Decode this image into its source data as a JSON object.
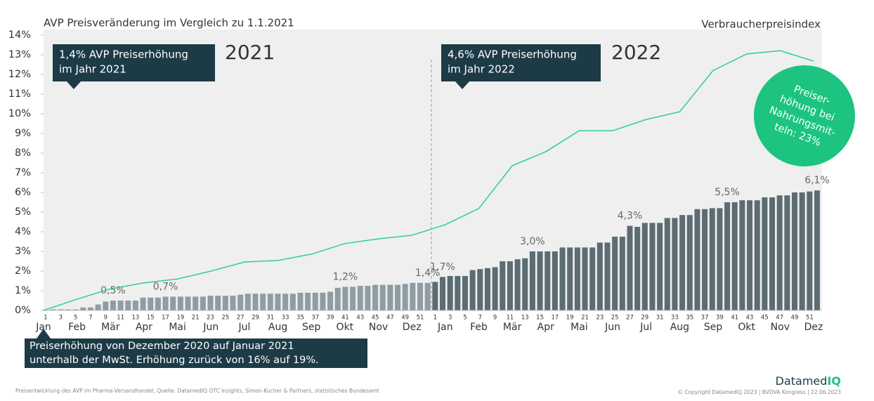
{
  "chart_data": {
    "type": "bar",
    "title": "AVP Preisveränderung im Vergleich zu 1.1.2021",
    "categories": [
      "1",
      null,
      "3",
      null,
      "5",
      null,
      "7",
      null,
      "9",
      null,
      "11",
      null,
      "13",
      null,
      "15",
      null,
      "17",
      null,
      "19",
      null,
      "21",
      null,
      "23",
      null,
      "25",
      null,
      "27",
      null,
      "29",
      null,
      "31",
      null,
      "33",
      null,
      "35",
      null,
      "37",
      null,
      "39",
      null,
      "41",
      null,
      "43",
      null,
      "45",
      null,
      "47",
      null,
      "49",
      null,
      "51",
      null,
      "1",
      null,
      "3",
      null,
      "5",
      null,
      "7",
      null,
      "9",
      null,
      "11",
      null,
      "13",
      null,
      "15",
      null,
      "17",
      null,
      "19",
      null,
      "21",
      null,
      "23",
      null,
      "25",
      null,
      "27",
      null,
      "29",
      null,
      "31",
      null,
      "33",
      null,
      "35",
      null,
      "37",
      null,
      "39",
      null,
      "41",
      null,
      "43",
      null,
      "45",
      null,
      "47",
      null,
      "49",
      null,
      "51",
      null
    ],
    "series": [
      {
        "name": "2021",
        "color": "#8f9da3",
        "values": [
          0,
          0.05,
          0.05,
          0.05,
          0.05,
          0.15,
          0.15,
          0.3,
          0.45,
          0.5,
          0.5,
          0.5,
          0.5,
          0.65,
          0.65,
          0.65,
          0.7,
          0.7,
          0.7,
          0.7,
          0.7,
          0.7,
          0.75,
          0.75,
          0.75,
          0.75,
          0.8,
          0.85,
          0.85,
          0.85,
          0.85,
          0.85,
          0.85,
          0.85,
          0.9,
          0.9,
          0.9,
          0.9,
          0.95,
          1.15,
          1.2,
          1.2,
          1.25,
          1.25,
          1.3,
          1.3,
          1.3,
          1.3,
          1.35,
          1.4,
          1.4,
          1.4,
          null,
          null,
          null,
          null,
          null,
          null,
          null,
          null,
          null,
          null,
          null,
          null,
          null,
          null,
          null,
          null,
          null,
          null,
          null,
          null,
          null,
          null,
          null,
          null,
          null,
          null,
          null,
          null,
          null,
          null,
          null,
          null,
          null,
          null,
          null,
          null,
          null,
          null,
          null,
          null,
          null,
          null,
          null,
          null,
          null,
          null,
          null,
          null,
          null,
          null,
          null,
          null
        ],
        "value_labels": [
          null,
          null,
          null,
          null,
          null,
          null,
          null,
          null,
          null,
          "0,5%",
          null,
          null,
          null,
          null,
          null,
          null,
          "0,7%",
          null,
          null,
          null,
          null,
          null,
          null,
          null,
          null,
          null,
          null,
          null,
          null,
          null,
          null,
          null,
          null,
          null,
          null,
          null,
          null,
          null,
          null,
          null,
          "1,2%",
          null,
          null,
          null,
          null,
          null,
          null,
          null,
          null,
          null,
          null,
          "1,4%",
          null,
          null,
          null,
          null,
          null,
          null,
          null,
          null,
          null,
          null,
          null,
          null,
          null,
          null,
          null,
          null,
          null,
          null,
          null,
          null,
          null,
          null,
          null,
          null,
          null,
          null,
          null,
          null,
          null,
          null,
          null,
          null,
          null,
          null,
          null,
          null,
          null,
          null,
          null,
          null,
          null,
          null,
          null,
          null,
          null,
          null,
          null,
          null,
          null,
          null,
          null,
          null
        ]
      },
      {
        "name": "2022",
        "color": "#5b6c73",
        "values": [
          null,
          null,
          null,
          null,
          null,
          null,
          null,
          null,
          null,
          null,
          null,
          null,
          null,
          null,
          null,
          null,
          null,
          null,
          null,
          null,
          null,
          null,
          null,
          null,
          null,
          null,
          null,
          null,
          null,
          null,
          null,
          null,
          null,
          null,
          null,
          null,
          null,
          null,
          null,
          null,
          null,
          null,
          null,
          null,
          null,
          null,
          null,
          null,
          null,
          null,
          null,
          null,
          1.45,
          1.7,
          1.75,
          1.75,
          1.75,
          2.05,
          2.1,
          2.15,
          2.2,
          2.5,
          2.5,
          2.6,
          2.65,
          3.0,
          3.0,
          3.0,
          3.0,
          3.2,
          3.2,
          3.2,
          3.2,
          3.2,
          3.45,
          3.45,
          3.75,
          3.75,
          4.3,
          4.25,
          4.45,
          4.45,
          4.45,
          4.7,
          4.7,
          4.85,
          4.85,
          5.15,
          5.15,
          5.2,
          5.2,
          5.5,
          5.5,
          5.6,
          5.6,
          5.6,
          5.75,
          5.75,
          5.85,
          5.85,
          6.0,
          6.0,
          6.05,
          6.1
        ],
        "value_labels": [
          null,
          null,
          null,
          null,
          null,
          null,
          null,
          null,
          null,
          null,
          null,
          null,
          null,
          null,
          null,
          null,
          null,
          null,
          null,
          null,
          null,
          null,
          null,
          null,
          null,
          null,
          null,
          null,
          null,
          null,
          null,
          null,
          null,
          null,
          null,
          null,
          null,
          null,
          null,
          null,
          null,
          null,
          null,
          null,
          null,
          null,
          null,
          null,
          null,
          null,
          null,
          null,
          null,
          "1,7%",
          null,
          null,
          null,
          null,
          null,
          null,
          null,
          null,
          null,
          null,
          null,
          "3,0%",
          null,
          null,
          null,
          null,
          null,
          null,
          null,
          null,
          null,
          null,
          null,
          null,
          "4,3%",
          null,
          null,
          null,
          null,
          null,
          null,
          null,
          null,
          null,
          null,
          null,
          null,
          "5,5%",
          null,
          null,
          null,
          null,
          null,
          null,
          null,
          null,
          null,
          null,
          null,
          "6,1%"
        ]
      }
    ],
    "line": {
      "type": "line",
      "name": "Verbraucherpreisindex",
      "color": "#2ecf8c",
      "categories": [
        "Jan",
        "Feb",
        "Mär",
        "Apr",
        "Mai",
        "Jun",
        "Jul",
        "Aug",
        "Sep",
        "Okt",
        "Nov",
        "Dez",
        "Jan",
        "Feb",
        "Mär",
        "Apr",
        "Mai",
        "Jun",
        "Jul",
        "Aug",
        "Sep",
        "Okt",
        "Nov",
        "Dez"
      ],
      "values": [
        0,
        0.57,
        1.1,
        1.4,
        1.6,
        2.0,
        2.46,
        2.54,
        2.86,
        3.4,
        3.64,
        3.82,
        4.36,
        5.18,
        7.36,
        8.07,
        9.14,
        9.14,
        9.71,
        10.1,
        12.2,
        13.04,
        13.21,
        12.68
      ]
    },
    "ylim": [
      0,
      14
    ],
    "yticks": [
      {
        "value": 0,
        "label": "0%"
      },
      {
        "value": 1,
        "label": "1%"
      },
      {
        "value": 2,
        "label": "2%"
      },
      {
        "value": 3,
        "label": "3%"
      },
      {
        "value": 4,
        "label": "4%"
      },
      {
        "value": 5,
        "label": "5%"
      },
      {
        "value": 6,
        "label": "6%"
      },
      {
        "value": 7,
        "label": "7%"
      },
      {
        "value": 8,
        "label": "8%"
      },
      {
        "value": 9,
        "label": "9%"
      },
      {
        "value": 10,
        "label": "10%"
      },
      {
        "value": 11,
        "label": "11%"
      },
      {
        "value": 12,
        "label": "12%"
      },
      {
        "value": 13,
        "label": "13%"
      },
      {
        "value": 14,
        "label": "14%"
      }
    ],
    "callouts": [
      [
        "1,4% AVP Preiserhöhung",
        "im Jahr 2021"
      ],
      [
        "4,6% AVP Preiserhöhung",
        "im Jahr 2022"
      ]
    ],
    "note": [
      "Preiserhöhung von Dezember 2020 auf Januar 2021",
      "unterhalb der MwSt. Erhöhung zurück von 16% auf 19%."
    ],
    "badge": [
      "Preiser-",
      "höhung bei",
      "Nahrungsmit-",
      "teln: 23%"
    ],
    "source": "Preisentwicklung des AVP im Pharma-Versandhandel, Quelle: DatamedIQ OTC Insights, Simon-Kucher & Partners, statistisches Bundesamt",
    "copyright": "© Copyright DatamedIQ 2023 | BVDVA Kongress | 22.06.2023",
    "brand": [
      "Datamed",
      "IQ"
    ]
  }
}
